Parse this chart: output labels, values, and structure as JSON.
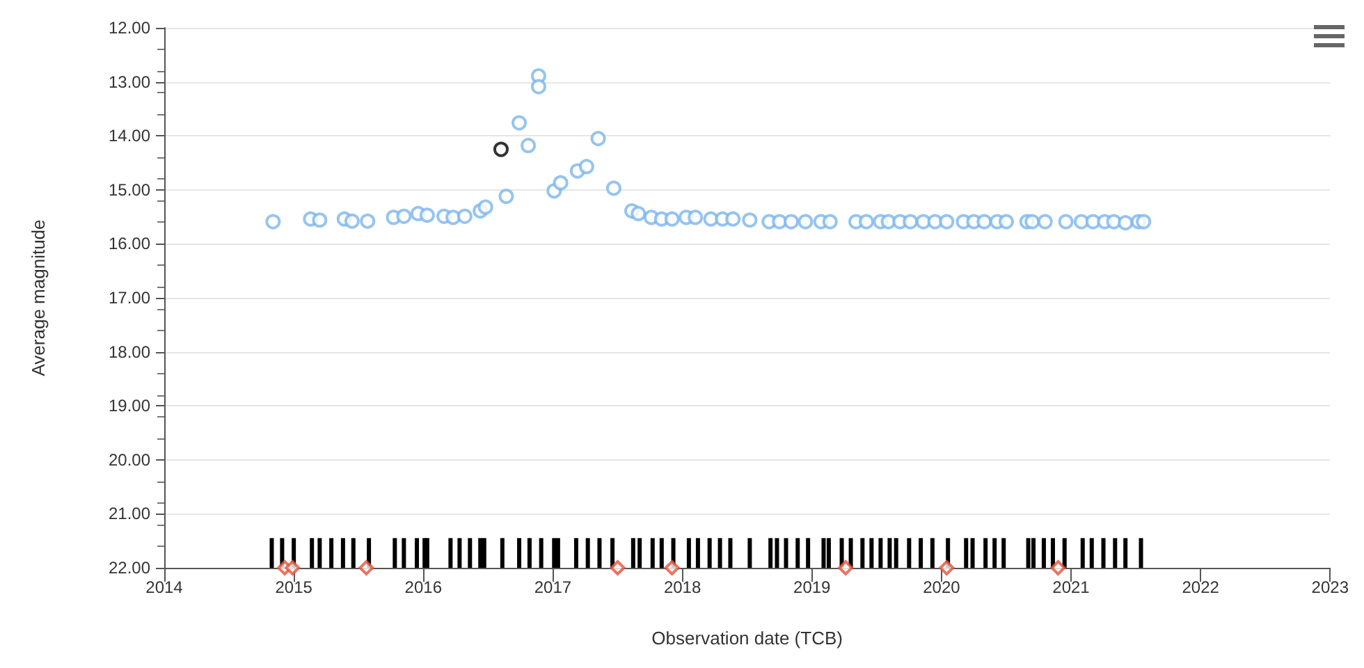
{
  "chart_data": {
    "type": "scatter",
    "xlabel": "Observation date (TCB)",
    "ylabel": "Average magnitude",
    "xlim": [
      2014,
      2023
    ],
    "xticks": [
      2014,
      2015,
      2016,
      2017,
      2018,
      2019,
      2020,
      2021,
      2022,
      2023
    ],
    "ylim": [
      22,
      12
    ],
    "yticks": [
      {
        "value": 12,
        "label": "12.00"
      },
      {
        "value": 13,
        "label": "13.00"
      },
      {
        "value": 14,
        "label": "14.00"
      },
      {
        "value": 15,
        "label": "15.00"
      },
      {
        "value": 16,
        "label": "16.00"
      },
      {
        "value": 17,
        "label": "17.00"
      },
      {
        "value": 18,
        "label": "18.00"
      },
      {
        "value": 19,
        "label": "19.00"
      },
      {
        "value": 20,
        "label": "20.00"
      },
      {
        "value": 21,
        "label": "21.00"
      },
      {
        "value": 22,
        "label": "22.00"
      }
    ],
    "grid": "y",
    "marker": "circle",
    "series": [
      {
        "color": "#7cb5ec",
        "x": [
          2014.84,
          2015.13,
          2015.2,
          2015.39,
          2015.45,
          2015.57,
          2015.77,
          2015.85,
          2015.96,
          2016.03,
          2016.16,
          2016.23,
          2016.32,
          2016.44,
          2016.48,
          2016.64,
          2016.74,
          2016.81,
          2016.89,
          2016.89,
          2017.01,
          2017.06,
          2017.19,
          2017.26,
          2017.35,
          2017.47,
          2017.61,
          2017.66,
          2017.76,
          2017.84,
          2017.92,
          2018.03,
          2018.1,
          2018.22,
          2018.31,
          2018.39,
          2018.52,
          2018.67,
          2018.75,
          2018.84,
          2018.95,
          2019.07,
          2019.14,
          2019.34,
          2019.42,
          2019.53,
          2019.59,
          2019.68,
          2019.76,
          2019.86,
          2019.95,
          2020.04,
          2020.17,
          2020.25,
          2020.33,
          2020.43,
          2020.5,
          2020.66,
          2020.7,
          2020.8,
          2020.96,
          2021.08,
          2021.17,
          2021.26,
          2021.33,
          2021.42,
          2021.52,
          2021.56
        ],
        "values": [
          15.59,
          15.54,
          15.56,
          15.54,
          15.58,
          15.58,
          15.51,
          15.49,
          15.44,
          15.47,
          15.49,
          15.51,
          15.49,
          15.39,
          15.32,
          15.12,
          13.76,
          14.18,
          12.89,
          13.09,
          15.02,
          14.87,
          14.65,
          14.57,
          14.05,
          14.97,
          15.39,
          15.44,
          15.51,
          15.54,
          15.54,
          15.51,
          15.51,
          15.54,
          15.54,
          15.54,
          15.56,
          15.59,
          15.59,
          15.59,
          15.59,
          15.59,
          15.59,
          15.59,
          15.59,
          15.59,
          15.59,
          15.59,
          15.59,
          15.59,
          15.59,
          15.59,
          15.59,
          15.59,
          15.59,
          15.59,
          15.59,
          15.59,
          15.59,
          15.59,
          15.59,
          15.59,
          15.59,
          15.59,
          15.59,
          15.61,
          15.59,
          15.59
        ]
      },
      {
        "color": "#000000",
        "x": [
          2016.6
        ],
        "values": [
          14.25
        ]
      },
      {
        "type": "bar",
        "color": "#000000",
        "x": [
          2014.83,
          2014.91,
          2015.0,
          2015.14,
          2015.2,
          2015.29,
          2015.38,
          2015.46,
          2015.58,
          2015.78,
          2015.85,
          2015.95,
          2016.01,
          2016.03,
          2016.21,
          2016.28,
          2016.36,
          2016.44,
          2016.47,
          2016.61,
          2016.74,
          2016.82,
          2016.91,
          2017.01,
          2017.04,
          2017.18,
          2017.27,
          2017.36,
          2017.46,
          2017.62,
          2017.67,
          2017.77,
          2017.84,
          2017.93,
          2018.05,
          2018.12,
          2018.21,
          2018.29,
          2018.37,
          2018.52,
          2018.68,
          2018.73,
          2018.8,
          2018.89,
          2018.97,
          2019.09,
          2019.13,
          2019.23,
          2019.3,
          2019.39,
          2019.46,
          2019.53,
          2019.6,
          2019.65,
          2019.75,
          2019.84,
          2019.93,
          2020.05,
          2020.19,
          2020.24,
          2020.34,
          2020.41,
          2020.48,
          2020.67,
          2020.71,
          2020.79,
          2020.86,
          2020.95,
          2021.09,
          2021.16,
          2021.25,
          2021.34,
          2021.42,
          2021.54
        ],
        "base": [
          22,
          22,
          22,
          22,
          22,
          22,
          22,
          22,
          22,
          22,
          22,
          22,
          22,
          22,
          22,
          22,
          22,
          22,
          22,
          22,
          22,
          22,
          22,
          22,
          22,
          22,
          22,
          22,
          22,
          22,
          22,
          22,
          22,
          22,
          22,
          22,
          22,
          22,
          22,
          22,
          22,
          22,
          22,
          22,
          22,
          22,
          22,
          22,
          22,
          22,
          22,
          22,
          22,
          22,
          22,
          22,
          22,
          22,
          22,
          22,
          22,
          22,
          22,
          22,
          22,
          22,
          22,
          22,
          22,
          22,
          22,
          22,
          22,
          22
        ],
        "values": [
          -0.55,
          -0.55,
          -0.55,
          -0.55,
          -0.55,
          -0.55,
          -0.55,
          -0.55,
          -0.55,
          -0.55,
          -0.55,
          -0.55,
          -0.55,
          -0.55,
          -0.55,
          -0.55,
          -0.55,
          -0.55,
          -0.55,
          -0.55,
          -0.55,
          -0.55,
          -0.55,
          -0.55,
          -0.55,
          -0.55,
          -0.55,
          -0.55,
          -0.55,
          -0.55,
          -0.55,
          -0.55,
          -0.55,
          -0.55,
          -0.55,
          -0.55,
          -0.55,
          -0.55,
          -0.55,
          -0.55,
          -0.55,
          -0.55,
          -0.55,
          -0.55,
          -0.55,
          -0.55,
          -0.55,
          -0.55,
          -0.55,
          -0.55,
          -0.55,
          -0.55,
          -0.55,
          -0.55,
          -0.55,
          -0.55,
          -0.55,
          -0.55,
          -0.55,
          -0.55,
          -0.55,
          -0.55,
          -0.55,
          -0.55,
          -0.55,
          -0.55,
          -0.55,
          -0.55,
          -0.55,
          -0.55,
          -0.55,
          -0.55,
          -0.55,
          -0.55
        ]
      },
      {
        "type": "scatter",
        "color": "#e4533a",
        "marker": "diamond",
        "x": [
          2014.93,
          2014.99,
          2015.56,
          2017.5,
          2017.92,
          2019.26,
          2020.04,
          2020.9
        ],
        "values": [
          22,
          22,
          22,
          22,
          22,
          22,
          22,
          22
        ]
      }
    ]
  }
}
